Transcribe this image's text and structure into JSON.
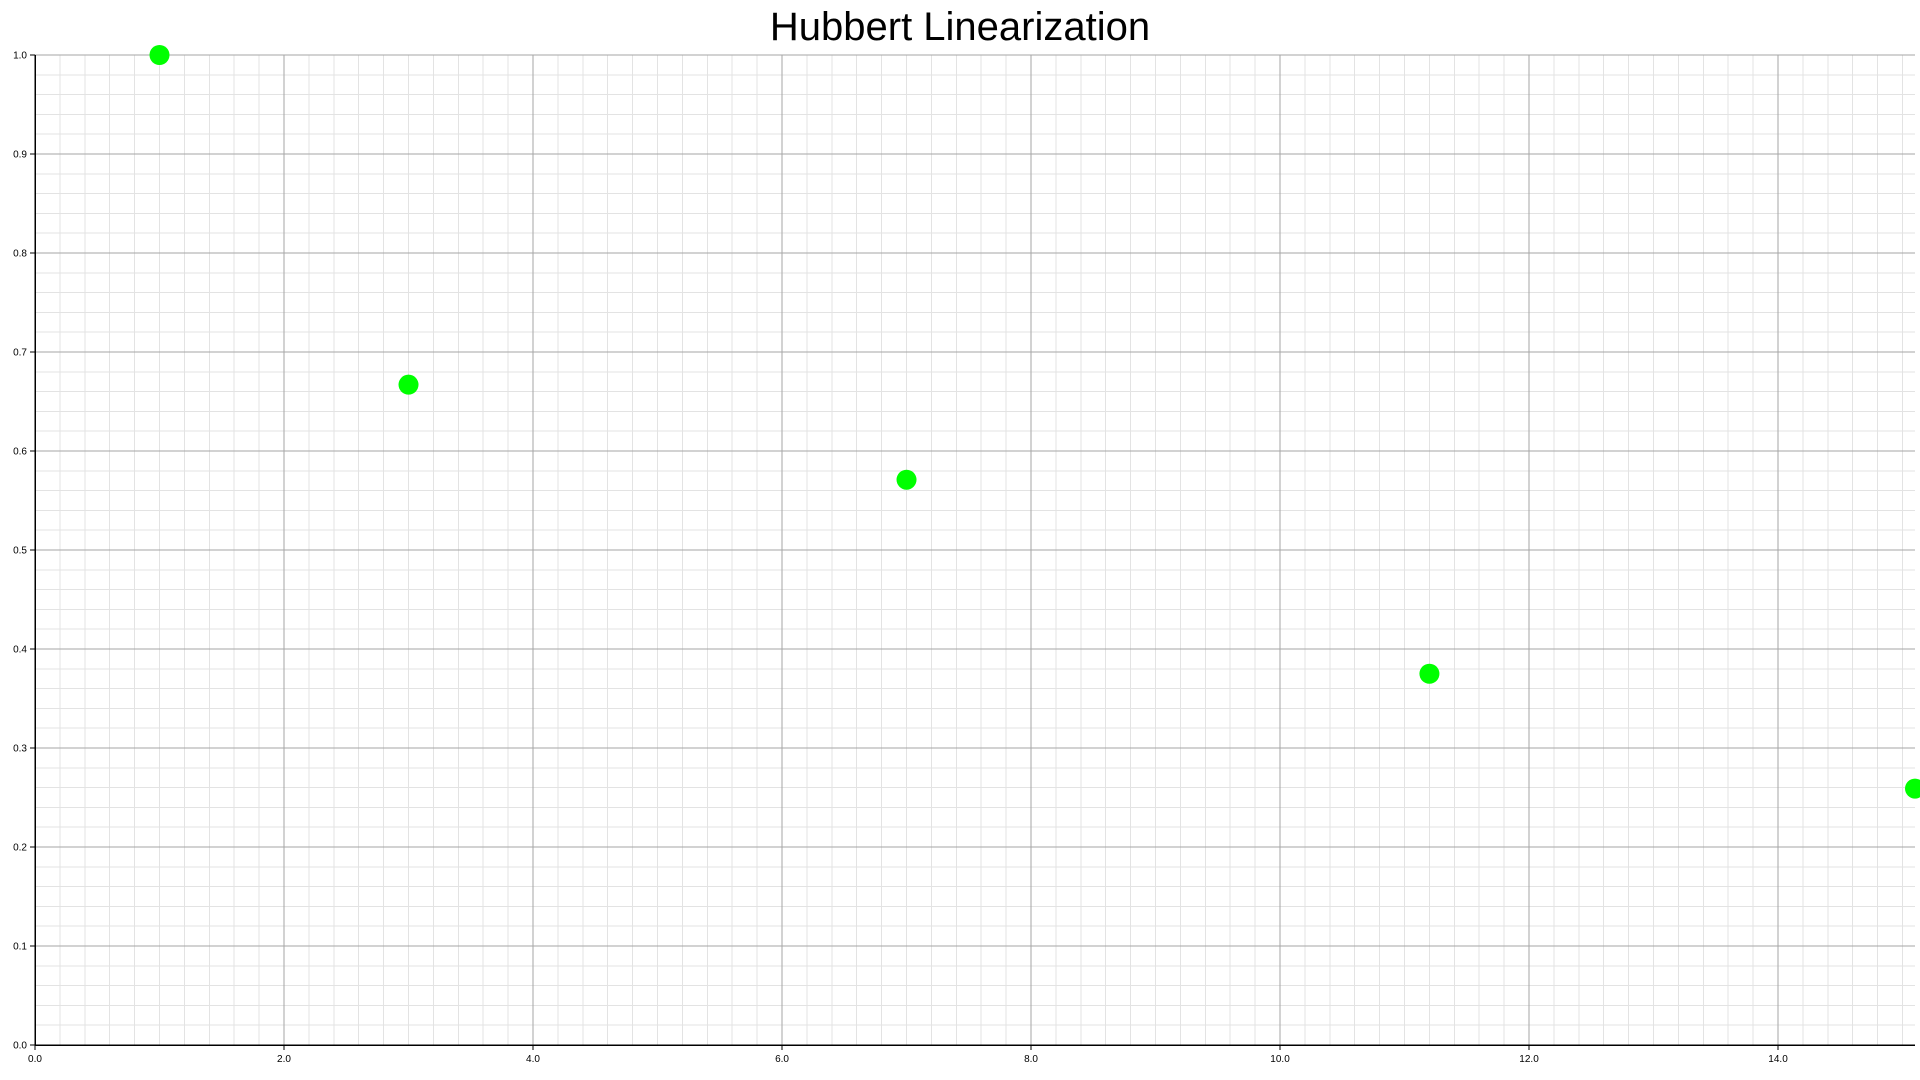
{
  "chart_data": {
    "type": "scatter",
    "title": "Hubbert Linearization",
    "xlabel": "",
    "ylabel": "",
    "xlim": [
      0,
      15.1
    ],
    "ylim": [
      0,
      1.0
    ],
    "x_ticks": [
      "0.0",
      "2.0",
      "4.0",
      "6.0",
      "8.0",
      "10.0",
      "12.0",
      "14.0"
    ],
    "y_ticks": [
      "0.0",
      "0.1",
      "0.2",
      "0.3",
      "0.4",
      "0.5",
      "0.6",
      "0.7",
      "0.8",
      "0.9",
      "1.0"
    ],
    "grid": true,
    "legend": "none",
    "marker_color": "#00ff00",
    "points": [
      {
        "x": 1.0,
        "y": 1.0
      },
      {
        "x": 3.0,
        "y": 0.667
      },
      {
        "x": 7.0,
        "y": 0.571
      },
      {
        "x": 11.2,
        "y": 0.375
      },
      {
        "x": 15.1,
        "y": 0.259
      }
    ]
  }
}
